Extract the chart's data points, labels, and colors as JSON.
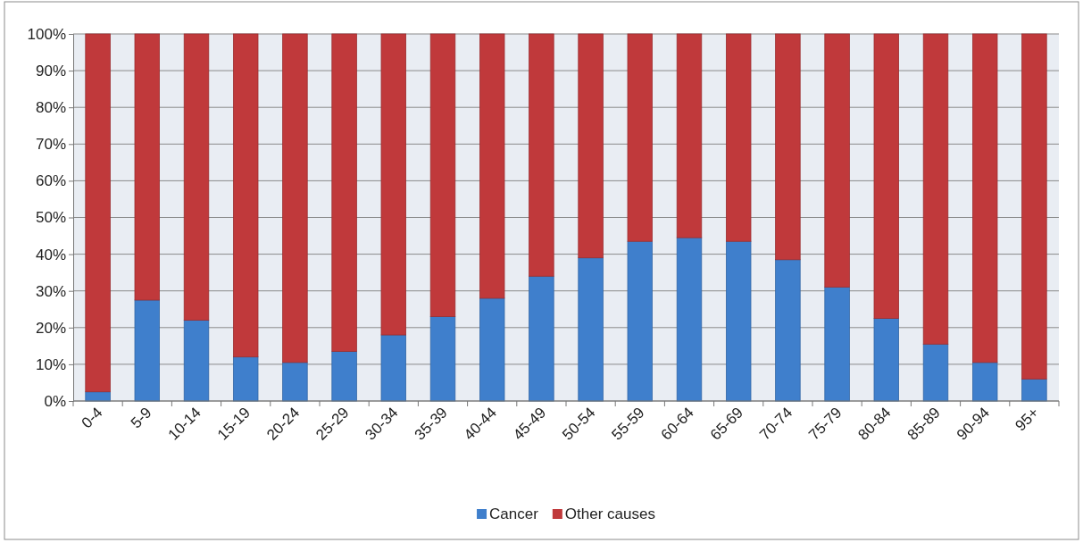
{
  "chart_data": {
    "type": "bar",
    "stacked": true,
    "categories": [
      "0-4",
      "5-9",
      "10-14",
      "15-19",
      "20-24",
      "25-29",
      "30-34",
      "35-39",
      "40-44",
      "45-49",
      "50-54",
      "55-59",
      "60-64",
      "65-69",
      "70-74",
      "75-79",
      "80-84",
      "85-89",
      "90-94",
      "95+"
    ],
    "series": [
      {
        "name": "Cancer",
        "color": "#3f7fcc",
        "values": [
          2.5,
          27.5,
          22,
          12,
          10.5,
          13.5,
          18,
          23,
          28,
          34,
          39,
          43.5,
          44.5,
          43.5,
          38.5,
          31,
          22.5,
          15.5,
          10.5,
          6
        ]
      },
      {
        "name": "Other causes",
        "color": "#c0393b",
        "values": [
          97.5,
          72.5,
          78,
          88,
          89.5,
          86.5,
          82,
          77,
          72,
          66,
          61,
          56.5,
          55.5,
          56.5,
          61.5,
          69,
          77.5,
          84.5,
          89.5,
          94
        ]
      }
    ],
    "ylim": [
      0,
      100
    ],
    "yticks": [
      {
        "value": 0,
        "label": "0%"
      },
      {
        "value": 10,
        "label": "10%"
      },
      {
        "value": 20,
        "label": "20%"
      },
      {
        "value": 30,
        "label": "30%"
      },
      {
        "value": 40,
        "label": "40%"
      },
      {
        "value": 50,
        "label": "50%"
      },
      {
        "value": 60,
        "label": "60%"
      },
      {
        "value": 70,
        "label": "70%"
      },
      {
        "value": 80,
        "label": "80%"
      },
      {
        "value": 90,
        "label": "90%"
      },
      {
        "value": 100,
        "label": "100%"
      }
    ],
    "grid": "y",
    "legend": "bottom"
  }
}
